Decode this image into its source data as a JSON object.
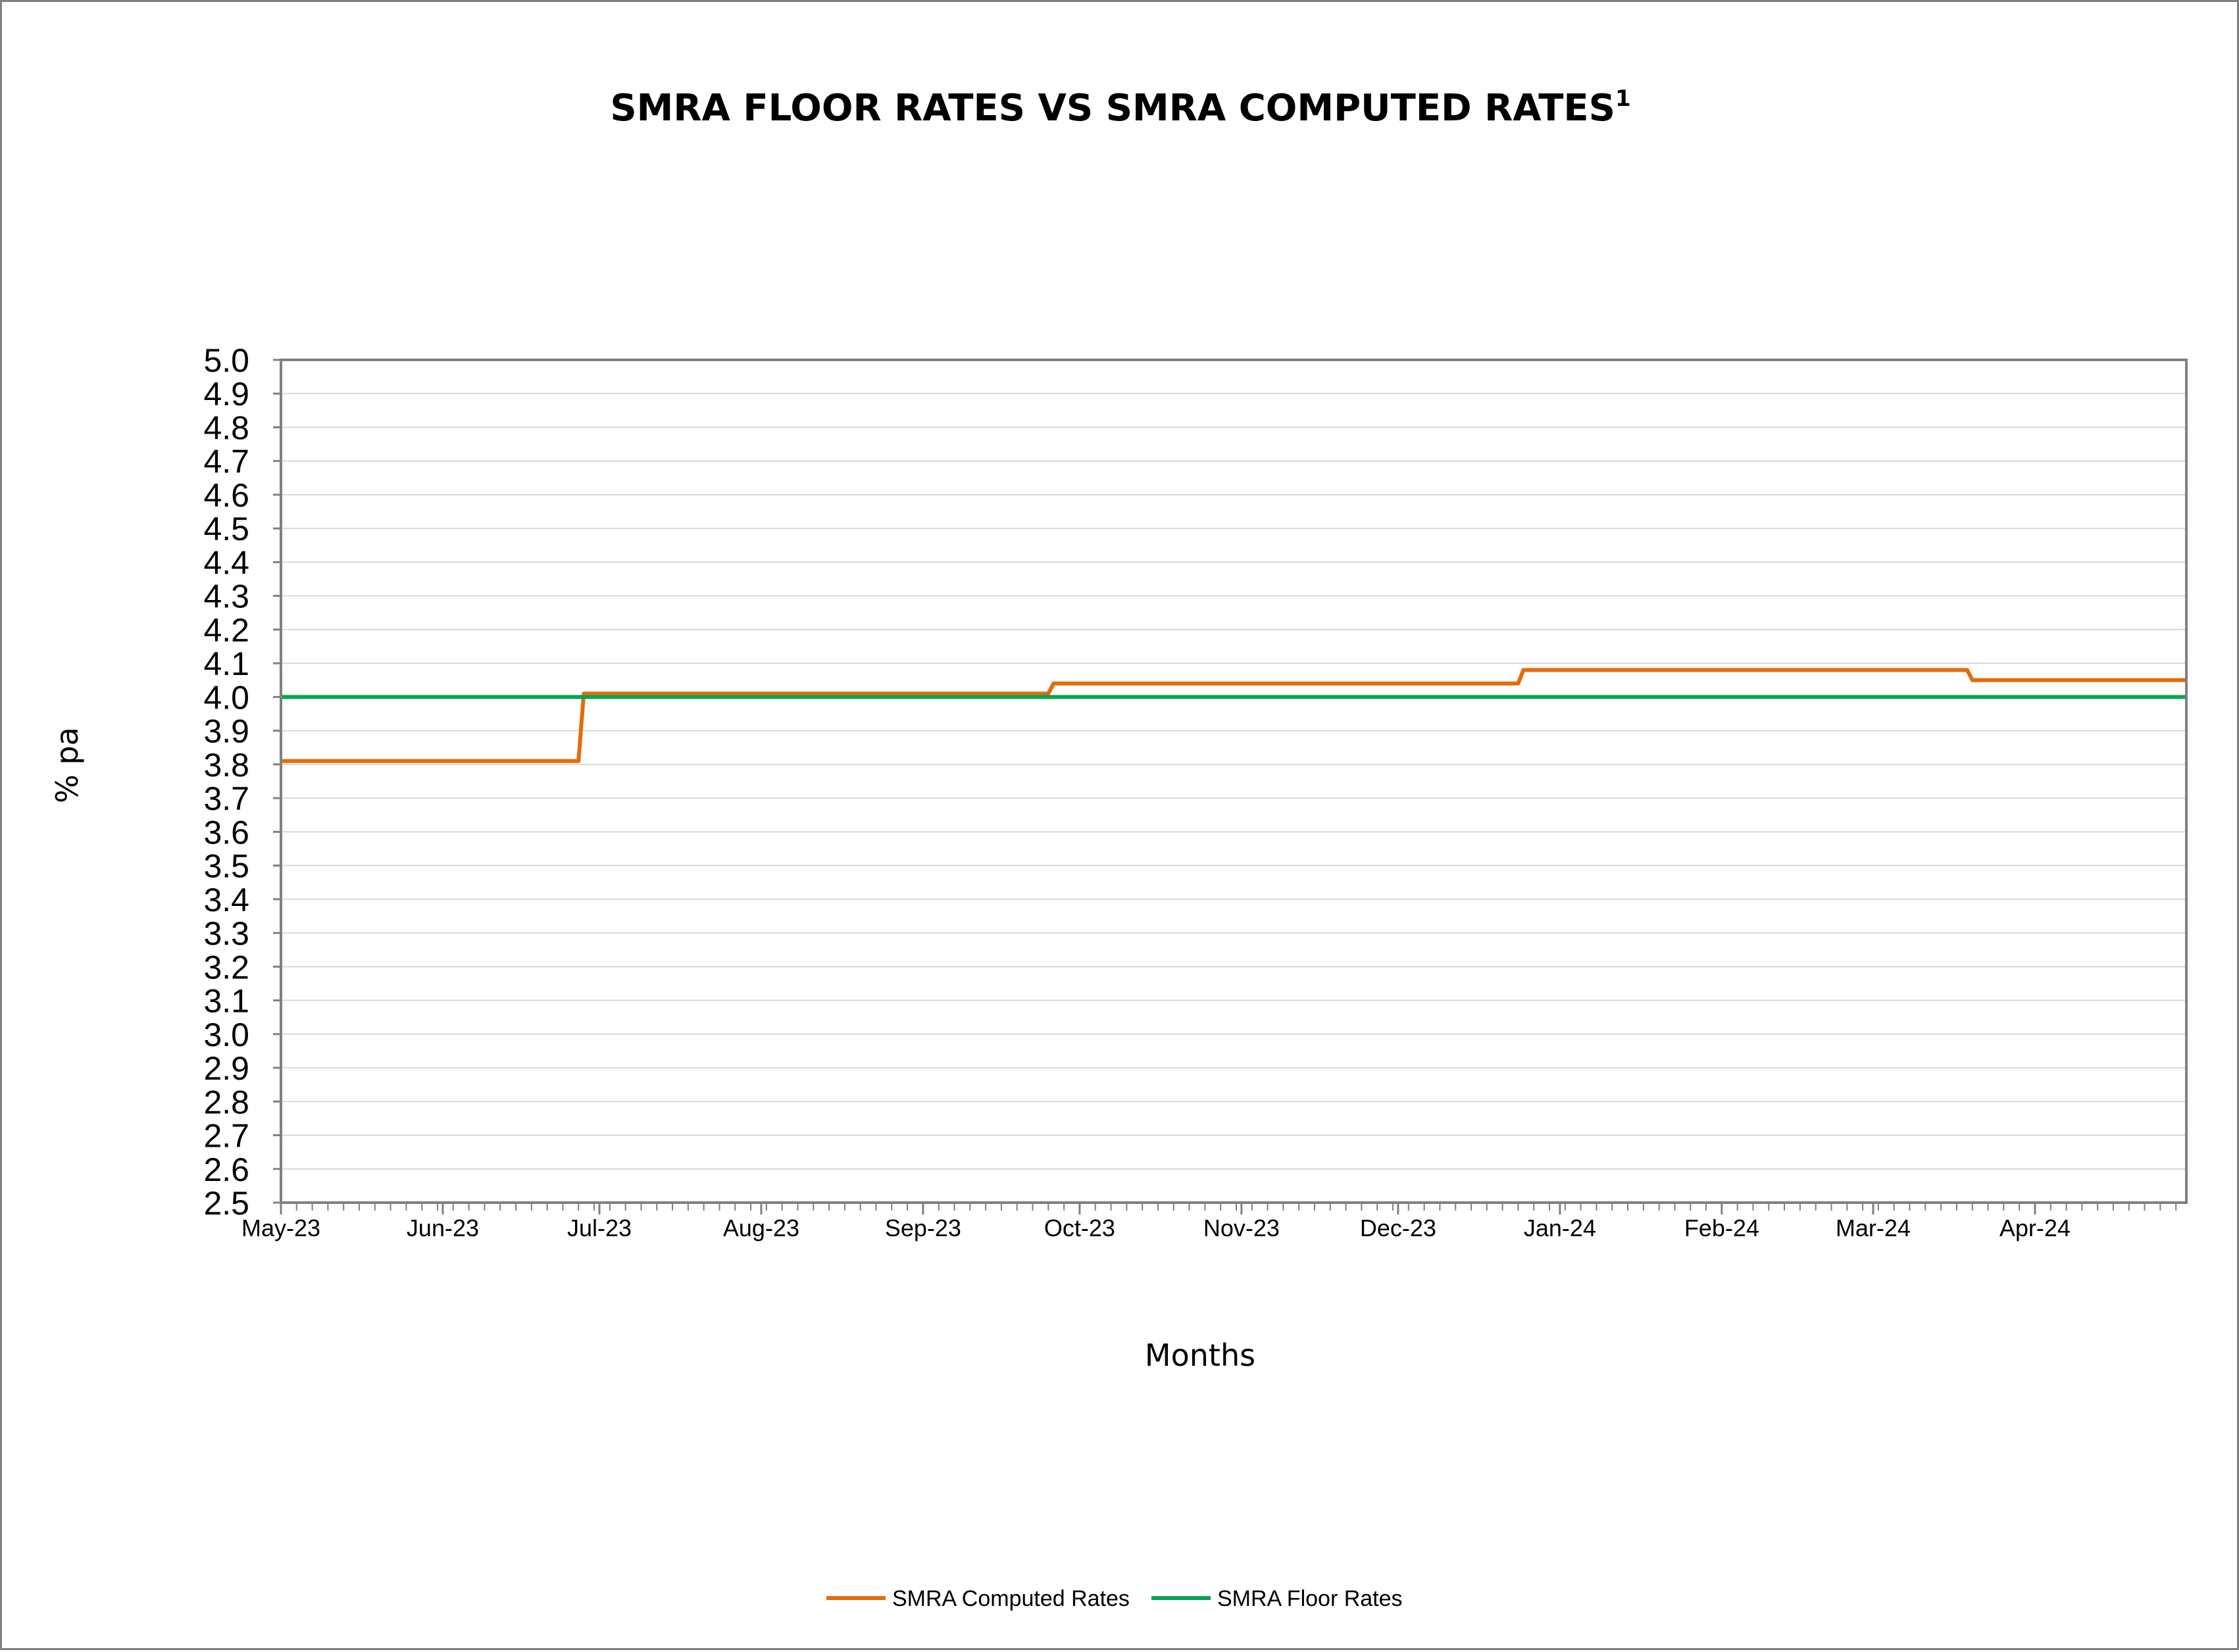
{
  "chart_data": {
    "type": "line",
    "title": "SMRA FLOOR RATES VS SMRA COMPUTED RATES",
    "title_superscript": "1",
    "xlabel": "Months",
    "ylabel": "% pa",
    "ylim": [
      2.5,
      5.0
    ],
    "y_ticks": [
      "5.0",
      "4.9",
      "4.8",
      "4.7",
      "4.6",
      "4.5",
      "4.4",
      "4.3",
      "4.2",
      "4.1",
      "4.0",
      "3.9",
      "3.8",
      "3.7",
      "3.6",
      "3.5",
      "3.4",
      "3.3",
      "3.2",
      "3.1",
      "3.0",
      "2.9",
      "2.8",
      "2.7",
      "2.6",
      "2.5"
    ],
    "x_ticks": [
      "May-23",
      "Jun-23",
      "Jul-23",
      "Aug-23",
      "Sep-23",
      "Oct-23",
      "Nov-23",
      "Dec-23",
      "Jan-24",
      "Feb-24",
      "Mar-24",
      "Apr-24"
    ],
    "xlim": [
      "2023-05-01",
      "2024-04-30"
    ],
    "grid": true,
    "legend_position": "bottom",
    "series": [
      {
        "name": "SMRA Computed Rates",
        "color": "#E46C0A",
        "points": [
          {
            "x": "2023-05-01",
            "y": 3.81
          },
          {
            "x": "2023-06-27",
            "y": 3.81
          },
          {
            "x": "2023-06-28",
            "y": 4.01
          },
          {
            "x": "2023-09-25",
            "y": 4.01
          },
          {
            "x": "2023-09-26",
            "y": 4.04
          },
          {
            "x": "2023-12-24",
            "y": 4.04
          },
          {
            "x": "2023-12-25",
            "y": 4.08
          },
          {
            "x": "2024-03-19",
            "y": 4.08
          },
          {
            "x": "2024-03-20",
            "y": 4.05
          },
          {
            "x": "2024-04-30",
            "y": 4.05
          }
        ]
      },
      {
        "name": "SMRA Floor Rates",
        "color": "#00A651",
        "points": [
          {
            "x": "2023-05-01",
            "y": 4.0
          },
          {
            "x": "2024-04-30",
            "y": 4.0
          }
        ]
      }
    ]
  }
}
